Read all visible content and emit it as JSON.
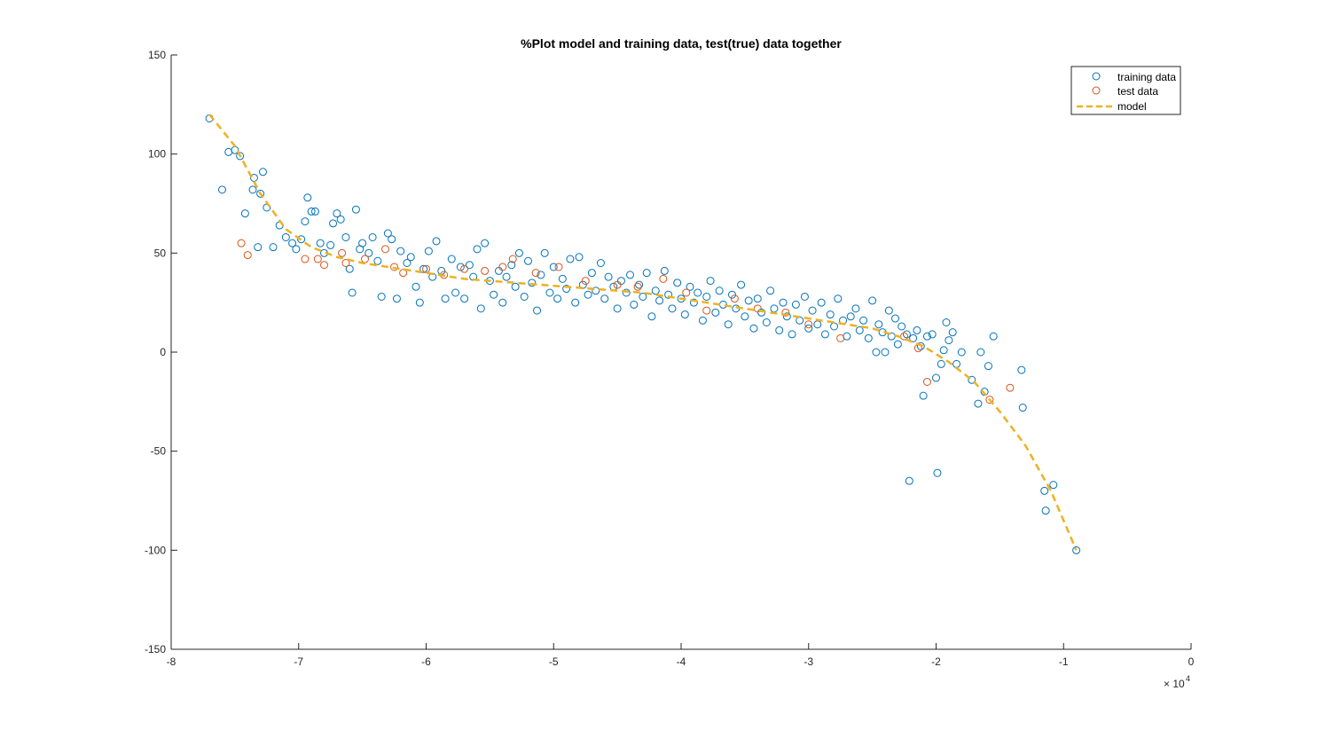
{
  "chart_data": {
    "type": "scatter",
    "title": "%Plot model and training data, test(true) data together",
    "xlabel": "",
    "ylabel": "",
    "xlim": [
      -80000,
      0
    ],
    "ylim": [
      -150,
      150
    ],
    "x_exponent_label": "× 10",
    "x_exponent_power": "4",
    "x_ticks": [
      -80000,
      -70000,
      -60000,
      -50000,
      -40000,
      -30000,
      -20000,
      -10000,
      0
    ],
    "x_tick_labels": [
      "-8",
      "-7",
      "-6",
      "-5",
      "-4",
      "-3",
      "-2",
      "-1",
      "0"
    ],
    "y_ticks": [
      -150,
      -100,
      -50,
      0,
      50,
      100,
      150
    ],
    "y_tick_labels": [
      "-150",
      "-100",
      "-50",
      "0",
      "50",
      "100",
      "150"
    ],
    "grid": false,
    "legend": {
      "placement": "top-right",
      "entries": [
        "training data",
        "test data",
        "model"
      ]
    },
    "colors": {
      "training": "#0072BD",
      "test": "#D95319",
      "model": "#EDB120"
    },
    "series": [
      {
        "name": "training data",
        "marker": "circle",
        "points": [
          [
            -77000,
            118
          ],
          [
            -76000,
            82
          ],
          [
            -75500,
            101
          ],
          [
            -75000,
            102
          ],
          [
            -74600,
            99
          ],
          [
            -74200,
            70
          ],
          [
            -73500,
            88
          ],
          [
            -73600,
            82
          ],
          [
            -73000,
            80
          ],
          [
            -72800,
            91
          ],
          [
            -73200,
            53
          ],
          [
            -72500,
            73
          ],
          [
            -72000,
            53
          ],
          [
            -71500,
            64
          ],
          [
            -71000,
            58
          ],
          [
            -70500,
            55
          ],
          [
            -70200,
            52
          ],
          [
            -69800,
            57
          ],
          [
            -69500,
            66
          ],
          [
            -69300,
            78
          ],
          [
            -69000,
            71
          ],
          [
            -68700,
            71
          ],
          [
            -68300,
            55
          ],
          [
            -68000,
            50
          ],
          [
            -67500,
            54
          ],
          [
            -67300,
            65
          ],
          [
            -67000,
            70
          ],
          [
            -66700,
            67
          ],
          [
            -66300,
            58
          ],
          [
            -66000,
            42
          ],
          [
            -65800,
            30
          ],
          [
            -65500,
            72
          ],
          [
            -65200,
            52
          ],
          [
            -65000,
            55
          ],
          [
            -64500,
            50
          ],
          [
            -64200,
            58
          ],
          [
            -63800,
            46
          ],
          [
            -63500,
            28
          ],
          [
            -63000,
            60
          ],
          [
            -62700,
            57
          ],
          [
            -62300,
            27
          ],
          [
            -62000,
            51
          ],
          [
            -61500,
            45
          ],
          [
            -61200,
            48
          ],
          [
            -60800,
            33
          ],
          [
            -60500,
            25
          ],
          [
            -60200,
            42
          ],
          [
            -59800,
            51
          ],
          [
            -59500,
            38
          ],
          [
            -59200,
            56
          ],
          [
            -58800,
            41
          ],
          [
            -58500,
            27
          ],
          [
            -58000,
            47
          ],
          [
            -57700,
            30
          ],
          [
            -57300,
            43
          ],
          [
            -57000,
            27
          ],
          [
            -56600,
            44
          ],
          [
            -56300,
            38
          ],
          [
            -56000,
            52
          ],
          [
            -55700,
            22
          ],
          [
            -55400,
            55
          ],
          [
            -55000,
            36
          ],
          [
            -54700,
            29
          ],
          [
            -54300,
            41
          ],
          [
            -54000,
            25
          ],
          [
            -53700,
            38
          ],
          [
            -53300,
            44
          ],
          [
            -53000,
            33
          ],
          [
            -52700,
            50
          ],
          [
            -52300,
            28
          ],
          [
            -52000,
            46
          ],
          [
            -51700,
            35
          ],
          [
            -51300,
            21
          ],
          [
            -51000,
            39
          ],
          [
            -50700,
            50
          ],
          [
            -50300,
            30
          ],
          [
            -50000,
            43
          ],
          [
            -49700,
            27
          ],
          [
            -49300,
            37
          ],
          [
            -49000,
            32
          ],
          [
            -48700,
            47
          ],
          [
            -48300,
            25
          ],
          [
            -48000,
            48
          ],
          [
            -47700,
            34
          ],
          [
            -47300,
            29
          ],
          [
            -47000,
            40
          ],
          [
            -46700,
            31
          ],
          [
            -46300,
            45
          ],
          [
            -46000,
            27
          ],
          [
            -45700,
            38
          ],
          [
            -45300,
            33
          ],
          [
            -45000,
            22
          ],
          [
            -44700,
            36
          ],
          [
            -44300,
            30
          ],
          [
            -44000,
            39
          ],
          [
            -43700,
            24
          ],
          [
            -43300,
            34
          ],
          [
            -43000,
            28
          ],
          [
            -42700,
            40
          ],
          [
            -42300,
            18
          ],
          [
            -42000,
            31
          ],
          [
            -41700,
            26
          ],
          [
            -41300,
            41
          ],
          [
            -41000,
            29
          ],
          [
            -40700,
            22
          ],
          [
            -40300,
            35
          ],
          [
            -40000,
            27
          ],
          [
            -39700,
            19
          ],
          [
            -39300,
            33
          ],
          [
            -39000,
            25
          ],
          [
            -38700,
            30
          ],
          [
            -38300,
            16
          ],
          [
            -38000,
            28
          ],
          [
            -37700,
            36
          ],
          [
            -37300,
            20
          ],
          [
            -37000,
            31
          ],
          [
            -36700,
            24
          ],
          [
            -36300,
            14
          ],
          [
            -36000,
            29
          ],
          [
            -35700,
            22
          ],
          [
            -35300,
            34
          ],
          [
            -35000,
            18
          ],
          [
            -34700,
            26
          ],
          [
            -34300,
            12
          ],
          [
            -34000,
            27
          ],
          [
            -33700,
            20
          ],
          [
            -33300,
            15
          ],
          [
            -33000,
            31
          ],
          [
            -32700,
            22
          ],
          [
            -32300,
            11
          ],
          [
            -32000,
            25
          ],
          [
            -31700,
            18
          ],
          [
            -31300,
            9
          ],
          [
            -31000,
            24
          ],
          [
            -30700,
            16
          ],
          [
            -30300,
            28
          ],
          [
            -30000,
            12
          ],
          [
            -29700,
            21
          ],
          [
            -29300,
            14
          ],
          [
            -29000,
            25
          ],
          [
            -28700,
            9
          ],
          [
            -28300,
            19
          ],
          [
            -28000,
            13
          ],
          [
            -27700,
            27
          ],
          [
            -27300,
            16
          ],
          [
            -27000,
            8
          ],
          [
            -26700,
            18
          ],
          [
            -26300,
            22
          ],
          [
            -26000,
            11
          ],
          [
            -25700,
            16
          ],
          [
            -25300,
            7
          ],
          [
            -25000,
            26
          ],
          [
            -24700,
            0
          ],
          [
            -24500,
            14
          ],
          [
            -24200,
            10
          ],
          [
            -24000,
            0
          ],
          [
            -23700,
            21
          ],
          [
            -23500,
            8
          ],
          [
            -23200,
            17
          ],
          [
            -23000,
            4
          ],
          [
            -22700,
            13
          ],
          [
            -22300,
            9
          ],
          [
            -22100,
            -65
          ],
          [
            -21800,
            7
          ],
          [
            -21500,
            11
          ],
          [
            -21200,
            3
          ],
          [
            -21000,
            -22
          ],
          [
            -20700,
            8
          ],
          [
            -20300,
            9
          ],
          [
            -20000,
            -13
          ],
          [
            -19900,
            -61
          ],
          [
            -19600,
            -6
          ],
          [
            -19400,
            1
          ],
          [
            -19200,
            15
          ],
          [
            -19000,
            6
          ],
          [
            -18700,
            10
          ],
          [
            -18400,
            -6
          ],
          [
            -18000,
            0
          ],
          [
            -17200,
            -14
          ],
          [
            -16700,
            -26
          ],
          [
            -16500,
            0
          ],
          [
            -16200,
            -20
          ],
          [
            -15900,
            -7
          ],
          [
            -15500,
            8
          ],
          [
            -13300,
            -9
          ],
          [
            -13200,
            -28
          ],
          [
            -11500,
            -70
          ],
          [
            -11400,
            -80
          ],
          [
            -10800,
            -67
          ],
          [
            -9000,
            -100
          ]
        ]
      },
      {
        "name": "test data",
        "marker": "circle",
        "points": [
          [
            -74500,
            55
          ],
          [
            -74000,
            49
          ],
          [
            -69500,
            47
          ],
          [
            -68500,
            47
          ],
          [
            -68000,
            44
          ],
          [
            -66600,
            50
          ],
          [
            -66300,
            45
          ],
          [
            -64800,
            47
          ],
          [
            -63200,
            52
          ],
          [
            -62500,
            43
          ],
          [
            -61800,
            40
          ],
          [
            -60000,
            42
          ],
          [
            -58600,
            39
          ],
          [
            -57000,
            42
          ],
          [
            -55400,
            41
          ],
          [
            -54000,
            43
          ],
          [
            -53200,
            47
          ],
          [
            -51400,
            40
          ],
          [
            -49600,
            43
          ],
          [
            -47500,
            36
          ],
          [
            -45000,
            34
          ],
          [
            -43400,
            33
          ],
          [
            -41400,
            37
          ],
          [
            -39600,
            30
          ],
          [
            -38000,
            21
          ],
          [
            -35800,
            27
          ],
          [
            -34000,
            22
          ],
          [
            -31800,
            20
          ],
          [
            -30000,
            14
          ],
          [
            -27500,
            7
          ],
          [
            -22500,
            8
          ],
          [
            -21400,
            2
          ],
          [
            -20700,
            -15
          ],
          [
            -15800,
            -24
          ],
          [
            -14200,
            -18
          ]
        ]
      }
    ],
    "model": {
      "name": "model",
      "style": "dashed",
      "points": [
        [
          -77000,
          120
        ],
        [
          -75000,
          104
        ],
        [
          -73000,
          80
        ],
        [
          -71000,
          62
        ],
        [
          -69000,
          53
        ],
        [
          -67000,
          48
        ],
        [
          -65000,
          45
        ],
        [
          -63000,
          43
        ],
        [
          -61000,
          41
        ],
        [
          -59000,
          39
        ],
        [
          -57000,
          37
        ],
        [
          -55000,
          36
        ],
        [
          -53000,
          35
        ],
        [
          -51000,
          34
        ],
        [
          -49000,
          33
        ],
        [
          -47000,
          32
        ],
        [
          -45000,
          31
        ],
        [
          -43000,
          30
        ],
        [
          -41000,
          28
        ],
        [
          -39000,
          26
        ],
        [
          -37000,
          24
        ],
        [
          -35000,
          22
        ],
        [
          -33000,
          20
        ],
        [
          -31000,
          18
        ],
        [
          -29000,
          16
        ],
        [
          -27000,
          14
        ],
        [
          -25000,
          12
        ],
        [
          -23000,
          8
        ],
        [
          -21000,
          3
        ],
        [
          -19000,
          -5
        ],
        [
          -17000,
          -15
        ],
        [
          -15000,
          -30
        ],
        [
          -13000,
          -47
        ],
        [
          -11000,
          -70
        ],
        [
          -9000,
          -100
        ]
      ]
    }
  }
}
